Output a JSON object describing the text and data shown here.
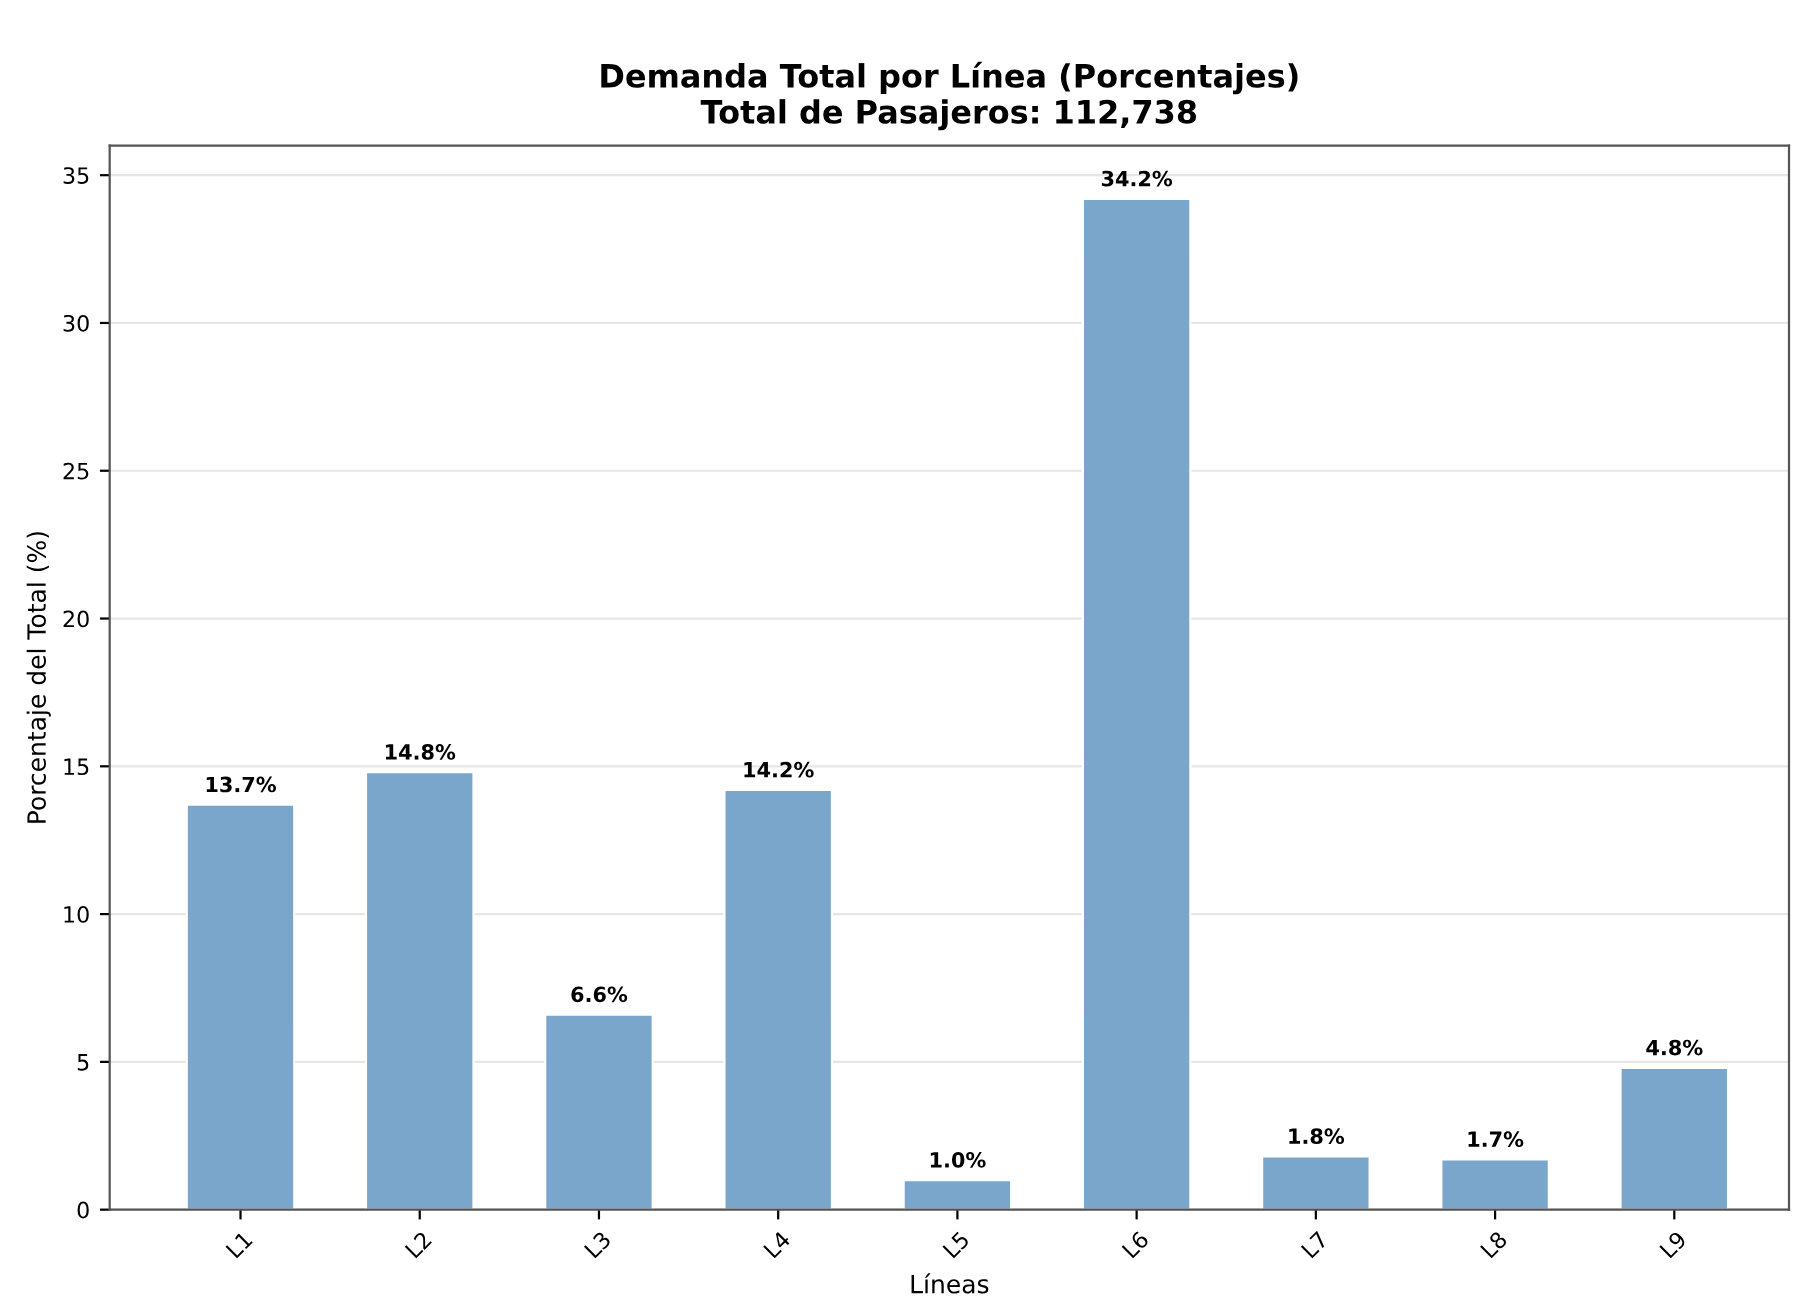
{
  "chart_data": {
    "type": "bar",
    "title": "Demanda Total por Línea (Porcentajes)\nTotal de Pasajeros: 112,738",
    "xlabel": "Líneas",
    "ylabel": "Porcentaje del Total (%)",
    "categories": [
      "L1",
      "L2",
      "L3",
      "L4",
      "L5",
      "L6",
      "L7",
      "L8",
      "L9"
    ],
    "values": [
      13.7,
      14.8,
      6.6,
      14.2,
      1.0,
      34.2,
      1.8,
      1.7,
      4.8
    ],
    "value_labels": [
      "13.7%",
      "14.8%",
      "6.6%",
      "14.2%",
      "1.0%",
      "34.2%",
      "1.8%",
      "1.7%",
      "4.8%"
    ],
    "color": "#7aa6cc",
    "ylim": [
      0,
      36
    ],
    "yticks": [
      0,
      5,
      10,
      15,
      20,
      25,
      30,
      35
    ],
    "grid": "y"
  }
}
